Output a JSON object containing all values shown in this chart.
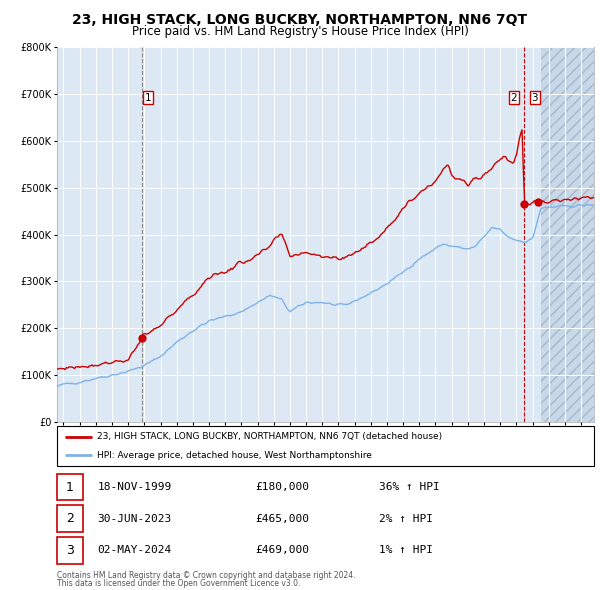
{
  "title": "23, HIGH STACK, LONG BUCKBY, NORTHAMPTON, NN6 7QT",
  "subtitle": "Price paid vs. HM Land Registry's House Price Index (HPI)",
  "title_fontsize": 10,
  "subtitle_fontsize": 8.5,
  "background_color": "#dce9f5",
  "future_background_color": "#c8d8e8",
  "hatch_color": "#a8b8cc",
  "grid_color": "#ffffff",
  "hpi_line_color": "#7fb3e8",
  "price_line_color": "#cc0000",
  "marker_color": "#cc0000",
  "vline_color_1": "#888888",
  "vline_color_23": "#cc0000",
  "legend_line1": "23, HIGH STACK, LONG BUCKBY, NORTHAMPTON, NN6 7QT (detached house)",
  "legend_line2": "HPI: Average price, detached house, West Northamptonshire",
  "transactions": [
    {
      "num": 1,
      "date": "18-NOV-1999",
      "price": 180000,
      "pct": "36%",
      "dir": "↑",
      "x": 1999.88
    },
    {
      "num": 2,
      "date": "30-JUN-2023",
      "price": 465000,
      "pct": "2%",
      "dir": "↑",
      "x": 2023.5
    },
    {
      "num": 3,
      "date": "02-MAY-2024",
      "price": 469000,
      "pct": "1%",
      "dir": "↑",
      "x": 2024.33
    }
  ],
  "footer_line1": "Contains HM Land Registry data © Crown copyright and database right 2024.",
  "footer_line2": "This data is licensed under the Open Government Licence v3.0.",
  "ylim": [
    0,
    800000
  ],
  "xlim_start": 1994.6,
  "xlim_end": 2027.8,
  "current_date_x": 2024.5,
  "ylabel_ticks": [
    0,
    100000,
    200000,
    300000,
    400000,
    500000,
    600000,
    700000,
    800000
  ],
  "ylabel_labels": [
    "£0",
    "£100K",
    "£200K",
    "£300K",
    "£400K",
    "£500K",
    "£600K",
    "£700K",
    "£800K"
  ],
  "hpi_anchors": [
    [
      1994.6,
      75000
    ],
    [
      1995.0,
      80000
    ],
    [
      1996.0,
      85000
    ],
    [
      1997.0,
      93000
    ],
    [
      1998.0,
      100000
    ],
    [
      1999.0,
      108000
    ],
    [
      2000.0,
      120000
    ],
    [
      2001.0,
      140000
    ],
    [
      2002.0,
      170000
    ],
    [
      2003.0,
      195000
    ],
    [
      2004.0,
      215000
    ],
    [
      2005.0,
      225000
    ],
    [
      2006.0,
      235000
    ],
    [
      2007.0,
      255000
    ],
    [
      2007.8,
      270000
    ],
    [
      2008.5,
      260000
    ],
    [
      2009.0,
      235000
    ],
    [
      2009.5,
      245000
    ],
    [
      2010.0,
      255000
    ],
    [
      2011.0,
      255000
    ],
    [
      2012.0,
      248000
    ],
    [
      2012.5,
      250000
    ],
    [
      2013.0,
      258000
    ],
    [
      2014.0,
      275000
    ],
    [
      2015.0,
      295000
    ],
    [
      2016.0,
      320000
    ],
    [
      2017.0,
      348000
    ],
    [
      2018.0,
      370000
    ],
    [
      2018.5,
      380000
    ],
    [
      2019.0,
      375000
    ],
    [
      2019.5,
      372000
    ],
    [
      2020.0,
      368000
    ],
    [
      2020.5,
      375000
    ],
    [
      2021.0,
      395000
    ],
    [
      2021.5,
      415000
    ],
    [
      2022.0,
      410000
    ],
    [
      2022.5,
      395000
    ],
    [
      2023.0,
      388000
    ],
    [
      2023.5,
      385000
    ],
    [
      2024.0,
      390000
    ],
    [
      2024.5,
      455000
    ],
    [
      2025.0,
      458000
    ],
    [
      2026.0,
      460000
    ],
    [
      2027.0,
      462000
    ],
    [
      2027.8,
      463000
    ]
  ],
  "price_anchors": [
    [
      1994.6,
      112000
    ],
    [
      1995.0,
      115000
    ],
    [
      1996.0,
      118000
    ],
    [
      1997.0,
      122000
    ],
    [
      1998.0,
      128000
    ],
    [
      1999.0,
      132000
    ],
    [
      1999.88,
      180000
    ],
    [
      2001.0,
      205000
    ],
    [
      2002.0,
      240000
    ],
    [
      2003.0,
      270000
    ],
    [
      2004.0,
      310000
    ],
    [
      2005.0,
      320000
    ],
    [
      2006.0,
      340000
    ],
    [
      2007.0,
      355000
    ],
    [
      2007.8,
      375000
    ],
    [
      2008.2,
      395000
    ],
    [
      2008.5,
      398000
    ],
    [
      2009.0,
      355000
    ],
    [
      2009.5,
      358000
    ],
    [
      2010.0,
      362000
    ],
    [
      2011.0,
      355000
    ],
    [
      2012.0,
      348000
    ],
    [
      2012.5,
      352000
    ],
    [
      2013.0,
      362000
    ],
    [
      2014.0,
      380000
    ],
    [
      2015.0,
      415000
    ],
    [
      2016.0,
      455000
    ],
    [
      2017.0,
      490000
    ],
    [
      2018.0,
      515000
    ],
    [
      2018.5,
      540000
    ],
    [
      2018.8,
      548000
    ],
    [
      2019.0,
      525000
    ],
    [
      2019.5,
      515000
    ],
    [
      2020.0,
      508000
    ],
    [
      2020.5,
      520000
    ],
    [
      2021.0,
      528000
    ],
    [
      2021.5,
      542000
    ],
    [
      2022.0,
      562000
    ],
    [
      2022.3,
      568000
    ],
    [
      2022.5,
      558000
    ],
    [
      2022.8,
      552000
    ],
    [
      2023.0,
      570000
    ],
    [
      2023.2,
      610000
    ],
    [
      2023.35,
      625000
    ],
    [
      2023.5,
      465000
    ],
    [
      2024.0,
      468000
    ],
    [
      2024.33,
      469000
    ],
    [
      2024.5,
      468000
    ],
    [
      2025.0,
      470000
    ],
    [
      2026.0,
      474000
    ],
    [
      2027.0,
      477000
    ],
    [
      2027.8,
      479000
    ]
  ]
}
